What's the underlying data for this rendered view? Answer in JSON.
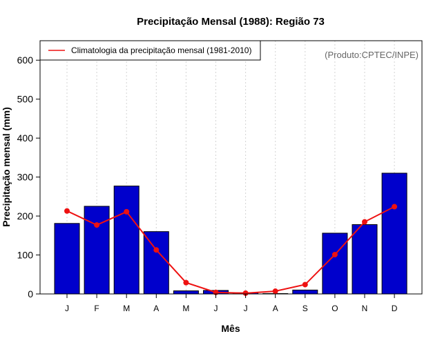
{
  "chart_data": {
    "type": "bar",
    "title": "Precipitação Mensal (1988): Região 73",
    "xlabel": "Mês",
    "ylabel": "Precipitação mensal (mm)",
    "ylim": [
      0,
      650
    ],
    "yticks": [
      0,
      100,
      200,
      300,
      400,
      500,
      600
    ],
    "categories": [
      "J",
      "F",
      "M",
      "A",
      "M",
      "J",
      "J",
      "A",
      "S",
      "O",
      "N",
      "D"
    ],
    "series": [
      {
        "name": "Precipitação mensal (1988)",
        "type": "bar",
        "color": "#0000CC",
        "values": [
          181,
          225,
          277,
          160,
          8,
          9,
          3,
          1,
          10,
          156,
          178,
          310
        ]
      },
      {
        "name": "Climatologia da precipitação mensal (1981-2010)",
        "type": "line",
        "color": "#EE1111",
        "values": [
          213,
          177,
          211,
          113,
          29,
          4,
          2,
          7,
          24,
          101,
          185,
          224
        ]
      }
    ],
    "legend": {
      "position": "top-left",
      "entries": [
        "Climatologia da precipitação mensal (1981-2010)"
      ]
    },
    "annotation": "(Produto:CPTEC/INPE)",
    "grid": {
      "vertical": true,
      "horizontal": false
    }
  }
}
